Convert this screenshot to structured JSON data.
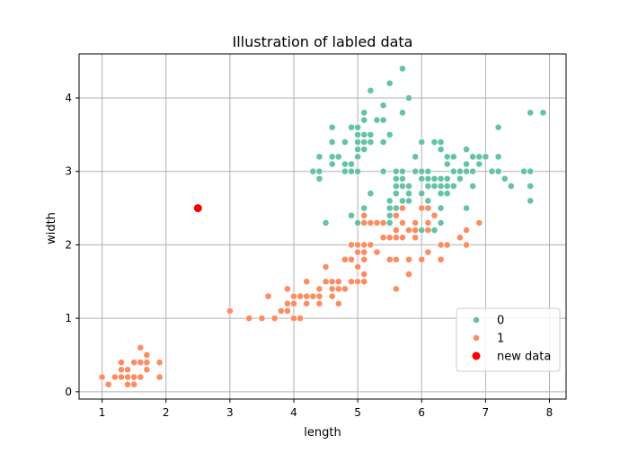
{
  "chart_data": {
    "type": "scatter",
    "title": "Illustration of labled data",
    "xlabel": "length",
    "ylabel": "width",
    "xlim": [
      0.64,
      8.26
    ],
    "ylim": [
      -0.1,
      4.6
    ],
    "xticks": [
      1,
      2,
      3,
      4,
      5,
      6,
      7,
      8
    ],
    "yticks": [
      0,
      1,
      2,
      3,
      4
    ],
    "grid": true,
    "legend_position": "lower-right",
    "series": [
      {
        "name": "0",
        "color": "#66c2a5",
        "points": [
          [
            5.1,
            3.5
          ],
          [
            4.9,
            3.0
          ],
          [
            4.7,
            3.2
          ],
          [
            4.6,
            3.1
          ],
          [
            5.0,
            3.6
          ],
          [
            5.4,
            3.9
          ],
          [
            4.6,
            3.4
          ],
          [
            5.0,
            3.4
          ],
          [
            4.4,
            2.9
          ],
          [
            4.9,
            3.1
          ],
          [
            5.4,
            3.7
          ],
          [
            4.8,
            3.4
          ],
          [
            4.8,
            3.0
          ],
          [
            4.3,
            3.0
          ],
          [
            5.8,
            4.0
          ],
          [
            5.7,
            4.4
          ],
          [
            5.4,
            3.9
          ],
          [
            5.1,
            3.5
          ],
          [
            5.7,
            3.8
          ],
          [
            5.1,
            3.8
          ],
          [
            5.4,
            3.4
          ],
          [
            5.1,
            3.7
          ],
          [
            4.6,
            3.6
          ],
          [
            5.1,
            3.3
          ],
          [
            4.8,
            3.4
          ],
          [
            5.0,
            3.0
          ],
          [
            5.0,
            3.4
          ],
          [
            5.2,
            3.5
          ],
          [
            5.2,
            3.4
          ],
          [
            4.7,
            3.2
          ],
          [
            4.8,
            3.1
          ],
          [
            5.4,
            3.4
          ],
          [
            5.2,
            4.1
          ],
          [
            5.5,
            4.2
          ],
          [
            4.9,
            3.1
          ],
          [
            5.0,
            3.2
          ],
          [
            5.5,
            3.5
          ],
          [
            4.9,
            3.6
          ],
          [
            4.4,
            3.0
          ],
          [
            5.1,
            3.4
          ],
          [
            5.0,
            3.5
          ],
          [
            4.5,
            2.3
          ],
          [
            4.4,
            3.2
          ],
          [
            5.0,
            3.5
          ],
          [
            5.1,
            3.8
          ],
          [
            4.8,
            3.0
          ],
          [
            5.1,
            3.8
          ],
          [
            4.6,
            3.2
          ],
          [
            5.3,
            3.7
          ],
          [
            5.0,
            3.3
          ],
          [
            7.0,
            3.2
          ],
          [
            6.4,
            3.2
          ],
          [
            6.9,
            3.1
          ],
          [
            5.5,
            2.3
          ],
          [
            6.5,
            2.8
          ],
          [
            5.7,
            2.8
          ],
          [
            6.3,
            3.3
          ],
          [
            4.9,
            2.4
          ],
          [
            6.6,
            2.9
          ],
          [
            5.2,
            2.7
          ],
          [
            5.0,
            2.0
          ],
          [
            5.9,
            3.0
          ],
          [
            6.0,
            2.2
          ],
          [
            6.1,
            2.9
          ],
          [
            5.6,
            2.9
          ],
          [
            6.7,
            3.1
          ],
          [
            5.6,
            3.0
          ],
          [
            5.8,
            2.7
          ],
          [
            6.2,
            2.2
          ],
          [
            5.6,
            2.5
          ],
          [
            5.9,
            3.2
          ],
          [
            6.1,
            2.8
          ],
          [
            6.3,
            2.5
          ],
          [
            6.1,
            2.8
          ],
          [
            6.4,
            2.9
          ],
          [
            6.6,
            3.0
          ],
          [
            6.8,
            2.8
          ],
          [
            6.7,
            3.0
          ],
          [
            6.0,
            2.9
          ],
          [
            5.7,
            2.6
          ],
          [
            5.5,
            2.4
          ],
          [
            5.5,
            2.4
          ],
          [
            5.8,
            2.7
          ],
          [
            6.0,
            2.7
          ],
          [
            5.4,
            3.0
          ],
          [
            6.0,
            3.4
          ],
          [
            6.7,
            3.1
          ],
          [
            6.3,
            2.3
          ],
          [
            5.6,
            3.0
          ],
          [
            5.5,
            2.5
          ],
          [
            5.5,
            2.6
          ],
          [
            6.1,
            3.0
          ],
          [
            5.8,
            2.6
          ],
          [
            5.0,
            2.3
          ],
          [
            5.6,
            2.7
          ],
          [
            5.7,
            3.0
          ],
          [
            5.7,
            2.9
          ],
          [
            6.2,
            2.9
          ],
          [
            5.1,
            2.5
          ],
          [
            5.7,
            2.8
          ],
          [
            6.3,
            3.3
          ],
          [
            5.8,
            2.7
          ],
          [
            7.1,
            3.0
          ],
          [
            6.3,
            2.9
          ],
          [
            6.5,
            3.0
          ],
          [
            7.6,
            3.0
          ],
          [
            7.3,
            2.9
          ],
          [
            6.7,
            2.5
          ],
          [
            7.2,
            3.6
          ],
          [
            6.5,
            3.2
          ],
          [
            6.4,
            2.7
          ],
          [
            6.8,
            3.0
          ],
          [
            5.8,
            2.8
          ],
          [
            6.4,
            3.2
          ],
          [
            6.5,
            3.0
          ],
          [
            7.7,
            3.8
          ],
          [
            7.7,
            2.6
          ],
          [
            6.9,
            3.2
          ],
          [
            5.6,
            2.8
          ],
          [
            7.7,
            2.8
          ],
          [
            6.3,
            2.7
          ],
          [
            6.7,
            3.3
          ],
          [
            7.2,
            3.2
          ],
          [
            6.2,
            2.8
          ],
          [
            6.1,
            3.0
          ],
          [
            6.4,
            2.8
          ],
          [
            7.2,
            3.0
          ],
          [
            7.4,
            2.8
          ],
          [
            7.9,
            3.8
          ],
          [
            6.4,
            2.8
          ],
          [
            6.3,
            2.8
          ],
          [
            6.1,
            2.6
          ],
          [
            7.7,
            3.0
          ],
          [
            6.3,
            3.4
          ],
          [
            6.4,
            3.1
          ],
          [
            6.0,
            3.0
          ],
          [
            6.9,
            3.1
          ],
          [
            6.7,
            3.1
          ],
          [
            5.8,
            2.7
          ],
          [
            6.8,
            3.2
          ],
          [
            6.7,
            3.3
          ],
          [
            6.7,
            3.0
          ],
          [
            6.3,
            2.5
          ],
          [
            6.5,
            3.0
          ],
          [
            6.2,
            3.4
          ],
          [
            5.9,
            3.0
          ],
          [
            5.4,
            3.4
          ],
          [
            5.2,
            3.5
          ],
          [
            6.1,
            2.8
          ],
          [
            6.9,
            3.1
          ]
        ]
      },
      {
        "name": "1",
        "color": "#fc8d62",
        "points": [
          [
            1.4,
            0.2
          ],
          [
            1.3,
            0.2
          ],
          [
            1.5,
            0.2
          ],
          [
            1.7,
            0.4
          ],
          [
            1.4,
            0.3
          ],
          [
            1.5,
            0.1
          ],
          [
            1.6,
            0.2
          ],
          [
            1.1,
            0.1
          ],
          [
            1.2,
            0.2
          ],
          [
            1.3,
            0.4
          ],
          [
            1.7,
            0.3
          ],
          [
            1.0,
            0.2
          ],
          [
            1.7,
            0.5
          ],
          [
            1.9,
            0.2
          ],
          [
            1.6,
            0.4
          ],
          [
            1.5,
            0.4
          ],
          [
            1.3,
            0.3
          ],
          [
            1.6,
            0.6
          ],
          [
            1.9,
            0.4
          ],
          [
            1.4,
            0.1
          ],
          [
            4.7,
            1.4
          ],
          [
            4.5,
            1.5
          ],
          [
            4.9,
            1.5
          ],
          [
            4.0,
            1.3
          ],
          [
            4.6,
            1.5
          ],
          [
            3.3,
            1.0
          ],
          [
            4.6,
            1.3
          ],
          [
            3.9,
            1.4
          ],
          [
            3.5,
            1.0
          ],
          [
            4.2,
            1.5
          ],
          [
            4.0,
            1.0
          ],
          [
            4.7,
            1.4
          ],
          [
            3.6,
            1.3
          ],
          [
            4.4,
            1.4
          ],
          [
            4.5,
            1.5
          ],
          [
            4.1,
            1.0
          ],
          [
            4.5,
            1.5
          ],
          [
            3.9,
            1.1
          ],
          [
            4.8,
            1.8
          ],
          [
            4.0,
            1.3
          ],
          [
            4.9,
            1.5
          ],
          [
            4.7,
            1.2
          ],
          [
            4.3,
            1.3
          ],
          [
            4.4,
            1.4
          ],
          [
            4.8,
            1.4
          ],
          [
            5.0,
            1.7
          ],
          [
            4.5,
            1.5
          ],
          [
            3.5,
            1.0
          ],
          [
            3.8,
            1.1
          ],
          [
            3.7,
            1.0
          ],
          [
            3.9,
            1.2
          ],
          [
            5.1,
            1.6
          ],
          [
            4.5,
            1.5
          ],
          [
            4.7,
            1.5
          ],
          [
            4.4,
            1.3
          ],
          [
            4.1,
            1.3
          ],
          [
            4.0,
            1.3
          ],
          [
            4.4,
            1.2
          ],
          [
            4.6,
            1.4
          ],
          [
            4.0,
            1.2
          ],
          [
            3.3,
            1.0
          ],
          [
            4.2,
            1.3
          ],
          [
            4.2,
            1.2
          ],
          [
            4.3,
            1.3
          ],
          [
            3.0,
            1.1
          ],
          [
            4.1,
            1.3
          ],
          [
            6.0,
            2.5
          ],
          [
            5.1,
            1.9
          ],
          [
            5.9,
            2.1
          ],
          [
            5.6,
            1.8
          ],
          [
            5.8,
            2.2
          ],
          [
            6.6,
            2.1
          ],
          [
            4.5,
            1.7
          ],
          [
            6.3,
            1.8
          ],
          [
            5.8,
            1.8
          ],
          [
            6.1,
            2.5
          ],
          [
            5.1,
            2.0
          ],
          [
            5.3,
            1.9
          ],
          [
            5.5,
            2.1
          ],
          [
            5.0,
            2.0
          ],
          [
            5.1,
            2.4
          ],
          [
            5.3,
            2.3
          ],
          [
            5.5,
            1.8
          ],
          [
            6.7,
            2.2
          ],
          [
            6.9,
            2.3
          ],
          [
            5.0,
            1.5
          ],
          [
            5.7,
            2.3
          ],
          [
            4.9,
            2.0
          ],
          [
            6.7,
            2.0
          ],
          [
            4.9,
            1.8
          ],
          [
            5.7,
            2.1
          ],
          [
            6.0,
            1.8
          ],
          [
            4.8,
            1.8
          ],
          [
            4.9,
            1.8
          ],
          [
            5.6,
            2.1
          ],
          [
            5.8,
            1.6
          ],
          [
            6.1,
            1.9
          ],
          [
            6.4,
            2.0
          ],
          [
            5.6,
            2.2
          ],
          [
            5.1,
            1.5
          ],
          [
            5.6,
            1.4
          ],
          [
            6.1,
            2.3
          ],
          [
            5.6,
            2.4
          ],
          [
            5.5,
            1.8
          ],
          [
            4.8,
            1.8
          ],
          [
            5.4,
            2.1
          ],
          [
            5.6,
            2.4
          ],
          [
            5.1,
            2.3
          ],
          [
            5.9,
            2.3
          ],
          [
            5.7,
            2.5
          ],
          [
            5.2,
            2.3
          ],
          [
            5.0,
            1.9
          ],
          [
            5.2,
            2.0
          ],
          [
            5.4,
            2.3
          ],
          [
            5.1,
            1.8
          ],
          [
            6.2,
            2.4
          ],
          [
            5.9,
            2.2
          ],
          [
            6.1,
            2.2
          ],
          [
            5.3,
            2.3
          ],
          [
            6.3,
            2.0
          ]
        ]
      },
      {
        "name": "new data",
        "color": "#ff0000",
        "points": [
          [
            2.5,
            2.5
          ]
        ]
      }
    ]
  }
}
